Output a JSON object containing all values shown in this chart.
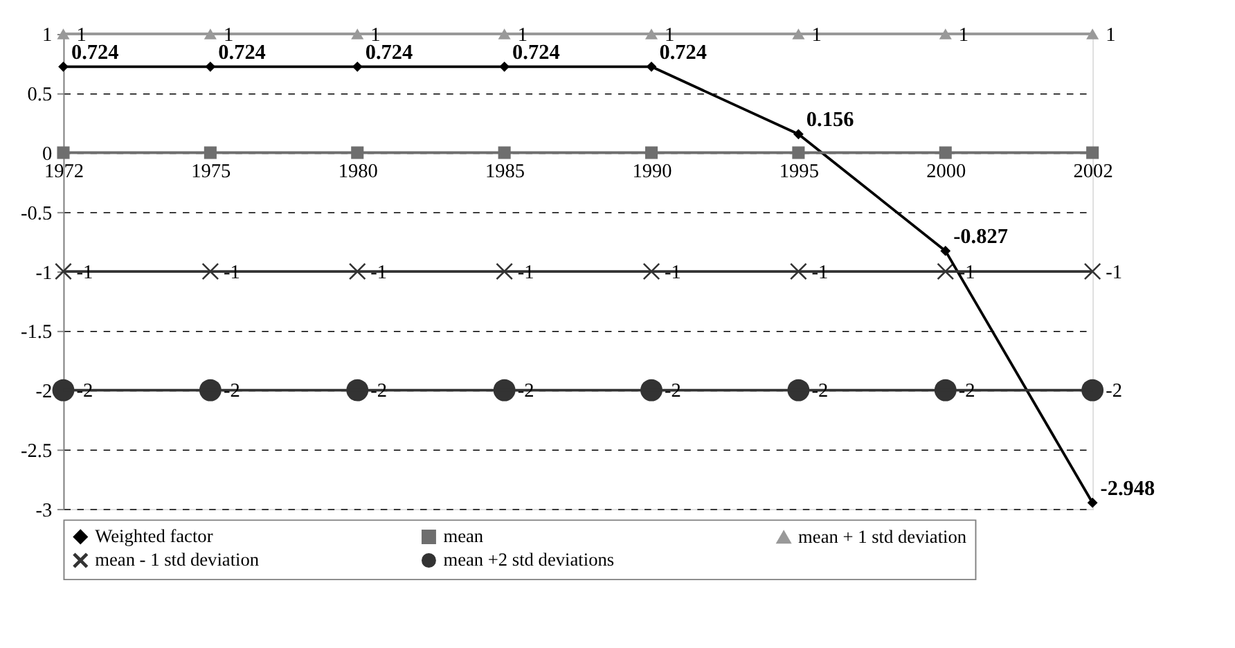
{
  "chart_data": {
    "type": "line",
    "categories": [
      "1972",
      "1975",
      "1980",
      "1985",
      "1990",
      "1995",
      "2000",
      "2002"
    ],
    "ylim": [
      -3,
      1
    ],
    "yticks": [
      -3,
      -2.5,
      -2,
      -1.5,
      -1,
      -0.5,
      0,
      0.5,
      1
    ],
    "grid": "y",
    "legend": "bottom",
    "line_style": "solid",
    "series": [
      {
        "name": "Weighted factor",
        "color": "#000000",
        "marker": "diamond",
        "values": [
          0.724,
          0.724,
          0.724,
          0.724,
          0.724,
          0.156,
          -0.827,
          -2.948
        ],
        "value_labels": [
          "0.724",
          "0.724",
          "0.724",
          "0.724",
          "0.724",
          "0.156",
          "-0.827",
          "-2.948"
        ]
      },
      {
        "name": "mean",
        "color": "#6e6e6e",
        "marker": "square",
        "values": [
          0,
          0,
          0,
          0,
          0,
          0,
          0,
          0
        ]
      },
      {
        "name": "mean + 1 std deviation",
        "color": "#999999",
        "marker": "triangle",
        "values": [
          1,
          1,
          1,
          1,
          1,
          1,
          1,
          1
        ],
        "value_labels": [
          "1",
          "1",
          "1",
          "1",
          "1",
          "1",
          "1",
          "1"
        ]
      },
      {
        "name": "mean - 1 std deviation",
        "color": "#333333",
        "marker": "cross",
        "values": [
          -1,
          -1,
          -1,
          -1,
          -1,
          -1,
          -1,
          -1
        ],
        "value_labels": [
          "-1",
          "-1",
          "-1",
          "-1",
          "-1",
          "-1",
          "-1",
          "-1"
        ]
      },
      {
        "name": "mean +2 std deviations",
        "color": "#333333",
        "marker": "circle",
        "values": [
          -2,
          -2,
          -2,
          -2,
          -2,
          -2,
          -2,
          -2
        ],
        "value_labels": [
          "-2",
          "-2",
          "-2",
          "-2",
          "-2",
          "-2",
          "-2",
          "-2"
        ]
      }
    ]
  }
}
